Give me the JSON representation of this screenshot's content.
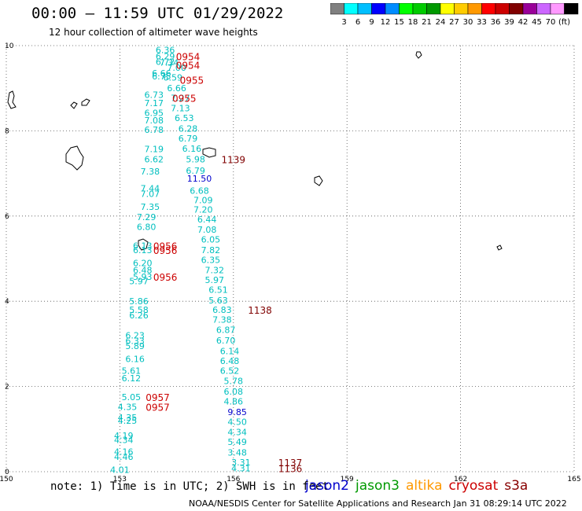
{
  "header": {
    "title": "00:00 – 11:59 UTC 01/29/2022",
    "subtitle": "12 hour collection of altimeter wave heights"
  },
  "footer": {
    "note": "note: 1) Time is in UTC; 2) SWH is in feet",
    "credit": "NOAA/NESDIS Center for Satellite Applications and Research   Jan 31 08:29:14 UTC 2022"
  },
  "satellites": [
    {
      "name": "jason2",
      "color": "#0000cc"
    },
    {
      "name": "jason3",
      "color": "#009900"
    },
    {
      "name": "altika",
      "color": "#ff9900"
    },
    {
      "name": "cryosat",
      "color": "#cc0000"
    },
    {
      "name": "s3a",
      "color": "#880000"
    }
  ],
  "colorbar": {
    "ticks": [
      "3",
      "6",
      "9",
      "12",
      "15",
      "18",
      "21",
      "24",
      "27",
      "30",
      "33",
      "36",
      "39",
      "42",
      "45",
      "70",
      "(ft)"
    ],
    "colors": [
      "#808080",
      "#00ffff",
      "#00bfff",
      "#0000ff",
      "#008cff",
      "#00ff00",
      "#00cc00",
      "#009900",
      "#ffff00",
      "#ffcc00",
      "#ff9900",
      "#ff0000",
      "#cc0000",
      "#800000",
      "#990099",
      "#cc66ff",
      "#ff99ff",
      "#000000"
    ]
  },
  "chart_data": {
    "type": "scatter",
    "title": "00:00 – 11:59 UTC 01/29/2022",
    "subtitle": "12 hour collection of altimeter wave heights",
    "xlim": [
      150,
      165
    ],
    "ylim": [
      0,
      10
    ],
    "x_ticks": [
      "150",
      "153",
      "156",
      "159",
      "162",
      "165"
    ],
    "y_ticks": [
      "0",
      "2",
      "4",
      "6",
      "8",
      "10"
    ],
    "grid": true,
    "series": [
      {
        "name": "track-west",
        "color": "#00bfbf",
        "points": [
          {
            "lon": 154.2,
            "lat": 9.9,
            "swh": "6.36"
          },
          {
            "lon": 154.2,
            "lat": 9.75,
            "swh": "6.29"
          },
          {
            "lon": 154.2,
            "lat": 9.62,
            "swh": "6.72"
          },
          {
            "lon": 154.5,
            "lat": 9.48,
            "swh": "7.00"
          },
          {
            "lon": 154.1,
            "lat": 9.35,
            "swh": "6.66"
          },
          {
            "lon": 154.1,
            "lat": 9.28,
            "swh": "6.75"
          },
          {
            "lon": 154.5,
            "lat": 9.0,
            "swh": "6.66"
          },
          {
            "lon": 153.9,
            "lat": 8.85,
            "swh": "6.73"
          },
          {
            "lon": 153.9,
            "lat": 8.65,
            "swh": "7.17"
          },
          {
            "lon": 153.9,
            "lat": 8.42,
            "swh": "6.95"
          },
          {
            "lon": 153.9,
            "lat": 8.25,
            "swh": "7.08"
          },
          {
            "lon": 153.9,
            "lat": 8.03,
            "swh": "6.78"
          },
          {
            "lon": 153.9,
            "lat": 7.57,
            "swh": "7.19"
          },
          {
            "lon": 153.9,
            "lat": 7.33,
            "swh": "6.62"
          },
          {
            "lon": 153.8,
            "lat": 7.05,
            "swh": "7.38"
          },
          {
            "lon": 153.8,
            "lat": 6.65,
            "swh": "7.44"
          },
          {
            "lon": 153.8,
            "lat": 6.52,
            "swh": "7.07"
          },
          {
            "lon": 153.8,
            "lat": 6.22,
            "swh": "7.35"
          },
          {
            "lon": 153.7,
            "lat": 5.98,
            "swh": "7.29"
          },
          {
            "lon": 153.7,
            "lat": 5.75,
            "swh": "6.80"
          },
          {
            "lon": 153.6,
            "lat": 5.3,
            "swh": "6.13"
          },
          {
            "lon": 153.6,
            "lat": 5.2,
            "swh": "6.13"
          },
          {
            "lon": 153.6,
            "lat": 4.9,
            "swh": "6.20"
          },
          {
            "lon": 153.6,
            "lat": 4.73,
            "swh": "6.48"
          },
          {
            "lon": 153.6,
            "lat": 4.58,
            "swh": "5.93"
          },
          {
            "lon": 153.5,
            "lat": 4.47,
            "swh": "5.97"
          },
          {
            "lon": 153.5,
            "lat": 4.0,
            "swh": "5.86"
          },
          {
            "lon": 153.5,
            "lat": 3.8,
            "swh": "5.58"
          },
          {
            "lon": 153.5,
            "lat": 3.67,
            "swh": "6.26"
          },
          {
            "lon": 153.4,
            "lat": 3.2,
            "swh": "6.23"
          },
          {
            "lon": 153.4,
            "lat": 3.07,
            "swh": "6.33"
          },
          {
            "lon": 153.4,
            "lat": 2.95,
            "swh": "5.89"
          },
          {
            "lon": 153.4,
            "lat": 2.65,
            "swh": "6.16"
          },
          {
            "lon": 153.3,
            "lat": 2.37,
            "swh": "5.61"
          },
          {
            "lon": 153.3,
            "lat": 2.2,
            "swh": "6.12"
          },
          {
            "lon": 153.3,
            "lat": 1.75,
            "swh": "5.05"
          },
          {
            "lon": 153.2,
            "lat": 1.52,
            "swh": "4.35"
          },
          {
            "lon": 153.2,
            "lat": 1.27,
            "swh": "4.35"
          },
          {
            "lon": 153.2,
            "lat": 1.2,
            "swh": "4.25"
          },
          {
            "lon": 153.1,
            "lat": 0.85,
            "swh": "4.19"
          },
          {
            "lon": 153.1,
            "lat": 0.75,
            "swh": "4.34"
          },
          {
            "lon": 153.1,
            "lat": 0.47,
            "swh": "4.16"
          },
          {
            "lon": 153.1,
            "lat": 0.35,
            "swh": "4.46"
          },
          {
            "lon": 153.0,
            "lat": 0.05,
            "swh": "4.01"
          }
        ]
      },
      {
        "name": "track-east",
        "color": "#00bfbf",
        "points": [
          {
            "lon": 154.3,
            "lat": 9.6,
            "swh": "7.34"
          },
          {
            "lon": 154.4,
            "lat": 9.25,
            "swh": "6.59"
          },
          {
            "lon": 154.6,
            "lat": 8.77,
            "swh": "7.27"
          },
          {
            "lon": 154.6,
            "lat": 8.53,
            "swh": "7.13"
          },
          {
            "lon": 154.7,
            "lat": 8.3,
            "swh": "6.53"
          },
          {
            "lon": 154.8,
            "lat": 8.05,
            "swh": "6.28"
          },
          {
            "lon": 154.8,
            "lat": 7.82,
            "swh": "6.79"
          },
          {
            "lon": 154.9,
            "lat": 7.58,
            "swh": "6.16"
          },
          {
            "lon": 155.0,
            "lat": 7.33,
            "swh": "5.98"
          },
          {
            "lon": 155.0,
            "lat": 7.07,
            "swh": "6.79"
          },
          {
            "lon": 155.1,
            "lat": 6.6,
            "swh": "6.68"
          },
          {
            "lon": 155.2,
            "lat": 6.37,
            "swh": "7.09"
          },
          {
            "lon": 155.2,
            "lat": 6.15,
            "swh": "7.20"
          },
          {
            "lon": 155.3,
            "lat": 5.92,
            "swh": "6.44"
          },
          {
            "lon": 155.3,
            "lat": 5.68,
            "swh": "7.08"
          },
          {
            "lon": 155.4,
            "lat": 5.45,
            "swh": "6.05"
          },
          {
            "lon": 155.4,
            "lat": 5.2,
            "swh": "7.82"
          },
          {
            "lon": 155.4,
            "lat": 4.97,
            "swh": "6.35"
          },
          {
            "lon": 155.5,
            "lat": 4.73,
            "swh": "7.32"
          },
          {
            "lon": 155.5,
            "lat": 4.5,
            "swh": "5.97"
          },
          {
            "lon": 155.6,
            "lat": 4.27,
            "swh": "6.51"
          },
          {
            "lon": 155.6,
            "lat": 4.02,
            "swh": "5.63"
          },
          {
            "lon": 155.7,
            "lat": 3.8,
            "swh": "6.83"
          },
          {
            "lon": 155.7,
            "lat": 3.57,
            "swh": "7.38"
          },
          {
            "lon": 155.8,
            "lat": 3.33,
            "swh": "6.87"
          },
          {
            "lon": 155.8,
            "lat": 3.08,
            "swh": "6.70"
          },
          {
            "lon": 155.9,
            "lat": 2.83,
            "swh": "6.14"
          },
          {
            "lon": 155.9,
            "lat": 2.6,
            "swh": "6.48"
          },
          {
            "lon": 155.9,
            "lat": 2.37,
            "swh": "6.52"
          },
          {
            "lon": 156.0,
            "lat": 2.13,
            "swh": "5.78"
          },
          {
            "lon": 156.0,
            "lat": 1.88,
            "swh": "6.08"
          },
          {
            "lon": 156.0,
            "lat": 1.65,
            "swh": "4.86"
          },
          {
            "lon": 156.1,
            "lat": 1.17,
            "swh": "4.50"
          },
          {
            "lon": 156.1,
            "lat": 0.93,
            "swh": "4.34"
          },
          {
            "lon": 156.1,
            "lat": 0.7,
            "swh": "5.49"
          },
          {
            "lon": 156.1,
            "lat": 0.45,
            "swh": "3.48"
          },
          {
            "lon": 156.2,
            "lat": 0.22,
            "swh": "3.31"
          },
          {
            "lon": 156.2,
            "lat": 0.08,
            "swh": "4.31"
          }
        ]
      },
      {
        "name": "track-east-high",
        "color": "#0000cc",
        "points": [
          {
            "lon": 155.1,
            "lat": 6.88,
            "swh": "11.50"
          },
          {
            "lon": 156.1,
            "lat": 1.4,
            "swh": "9.85"
          }
        ]
      }
    ],
    "time_labels": [
      {
        "lon": 154.8,
        "lat": 9.75,
        "text": "0954",
        "color": "#cc0000"
      },
      {
        "lon": 154.8,
        "lat": 9.55,
        "text": "0954",
        "color": "#cc0000"
      },
      {
        "lon": 154.9,
        "lat": 9.2,
        "text": "0955",
        "color": "#cc0000"
      },
      {
        "lon": 154.7,
        "lat": 8.77,
        "text": "0955",
        "color": "#cc0000"
      },
      {
        "lon": 154.2,
        "lat": 5.3,
        "text": "0956",
        "color": "#cc0000"
      },
      {
        "lon": 154.2,
        "lat": 5.2,
        "text": "0956",
        "color": "#cc0000"
      },
      {
        "lon": 154.2,
        "lat": 4.58,
        "text": "0956",
        "color": "#cc0000"
      },
      {
        "lon": 154.0,
        "lat": 1.75,
        "text": "0957",
        "color": "#cc0000"
      },
      {
        "lon": 154.0,
        "lat": 1.52,
        "text": "0957",
        "color": "#cc0000"
      },
      {
        "lon": 156.0,
        "lat": 7.33,
        "text": "1139",
        "color": "#800000"
      },
      {
        "lon": 156.7,
        "lat": 3.8,
        "text": "1138",
        "color": "#800000"
      },
      {
        "lon": 157.5,
        "lat": 0.22,
        "text": "1137",
        "color": "#800000"
      },
      {
        "lon": 157.5,
        "lat": 0.08,
        "text": "1136",
        "color": "#800000"
      }
    ]
  }
}
